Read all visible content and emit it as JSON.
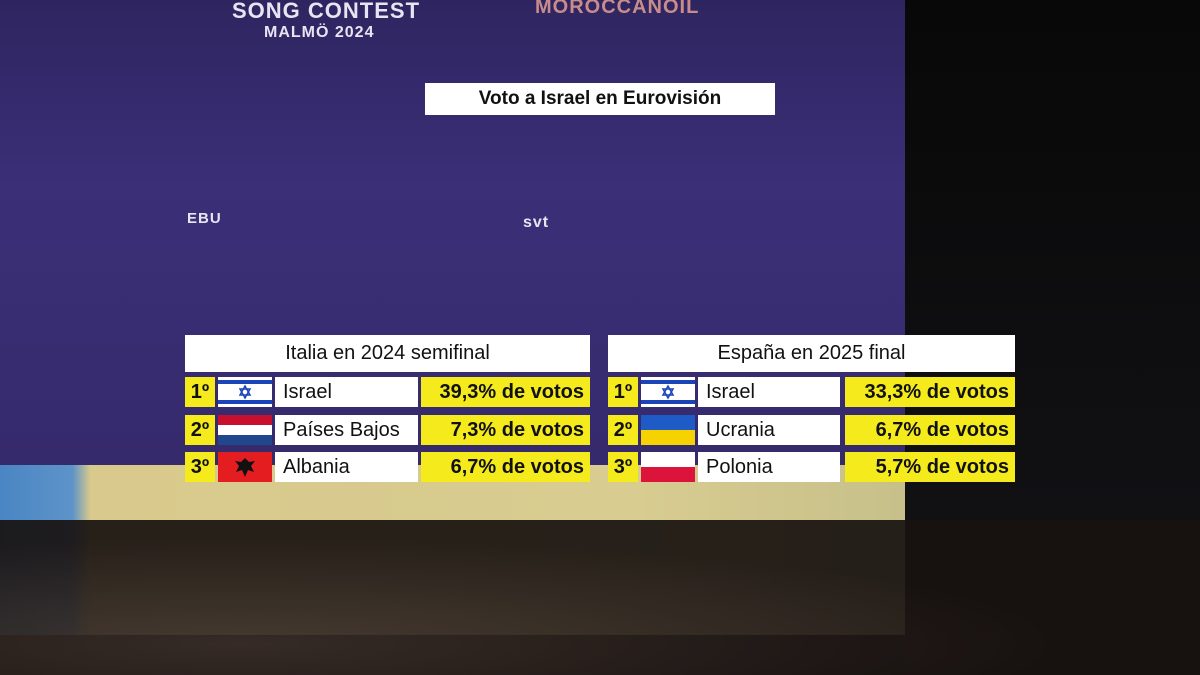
{
  "backdrop": {
    "texts": [
      "SONG CONTEST",
      "MALMÖ 2024",
      "MOROCCANOIL",
      "EBU",
      "svt"
    ]
  },
  "title": "Voto a Israel en Eurovisión",
  "tables": [
    {
      "heading": "Italia en 2024 semifinal",
      "rows": [
        {
          "rank": "1º",
          "country": "Israel",
          "votes": "39,3% de votos"
        },
        {
          "rank": "2º",
          "country": "Países Bajos",
          "votes": "7,3% de votos"
        },
        {
          "rank": "3º",
          "country": "Albania",
          "votes": "6,7% de votos"
        }
      ]
    },
    {
      "heading": "España en 2025 final",
      "rows": [
        {
          "rank": "1º",
          "country": "Israel",
          "votes": "33,3% de votos"
        },
        {
          "rank": "2º",
          "country": "Ucrania",
          "votes": "6,7% de votos"
        },
        {
          "rank": "3º",
          "country": "Polonia",
          "votes": "5,7% de votos"
        }
      ]
    }
  ]
}
